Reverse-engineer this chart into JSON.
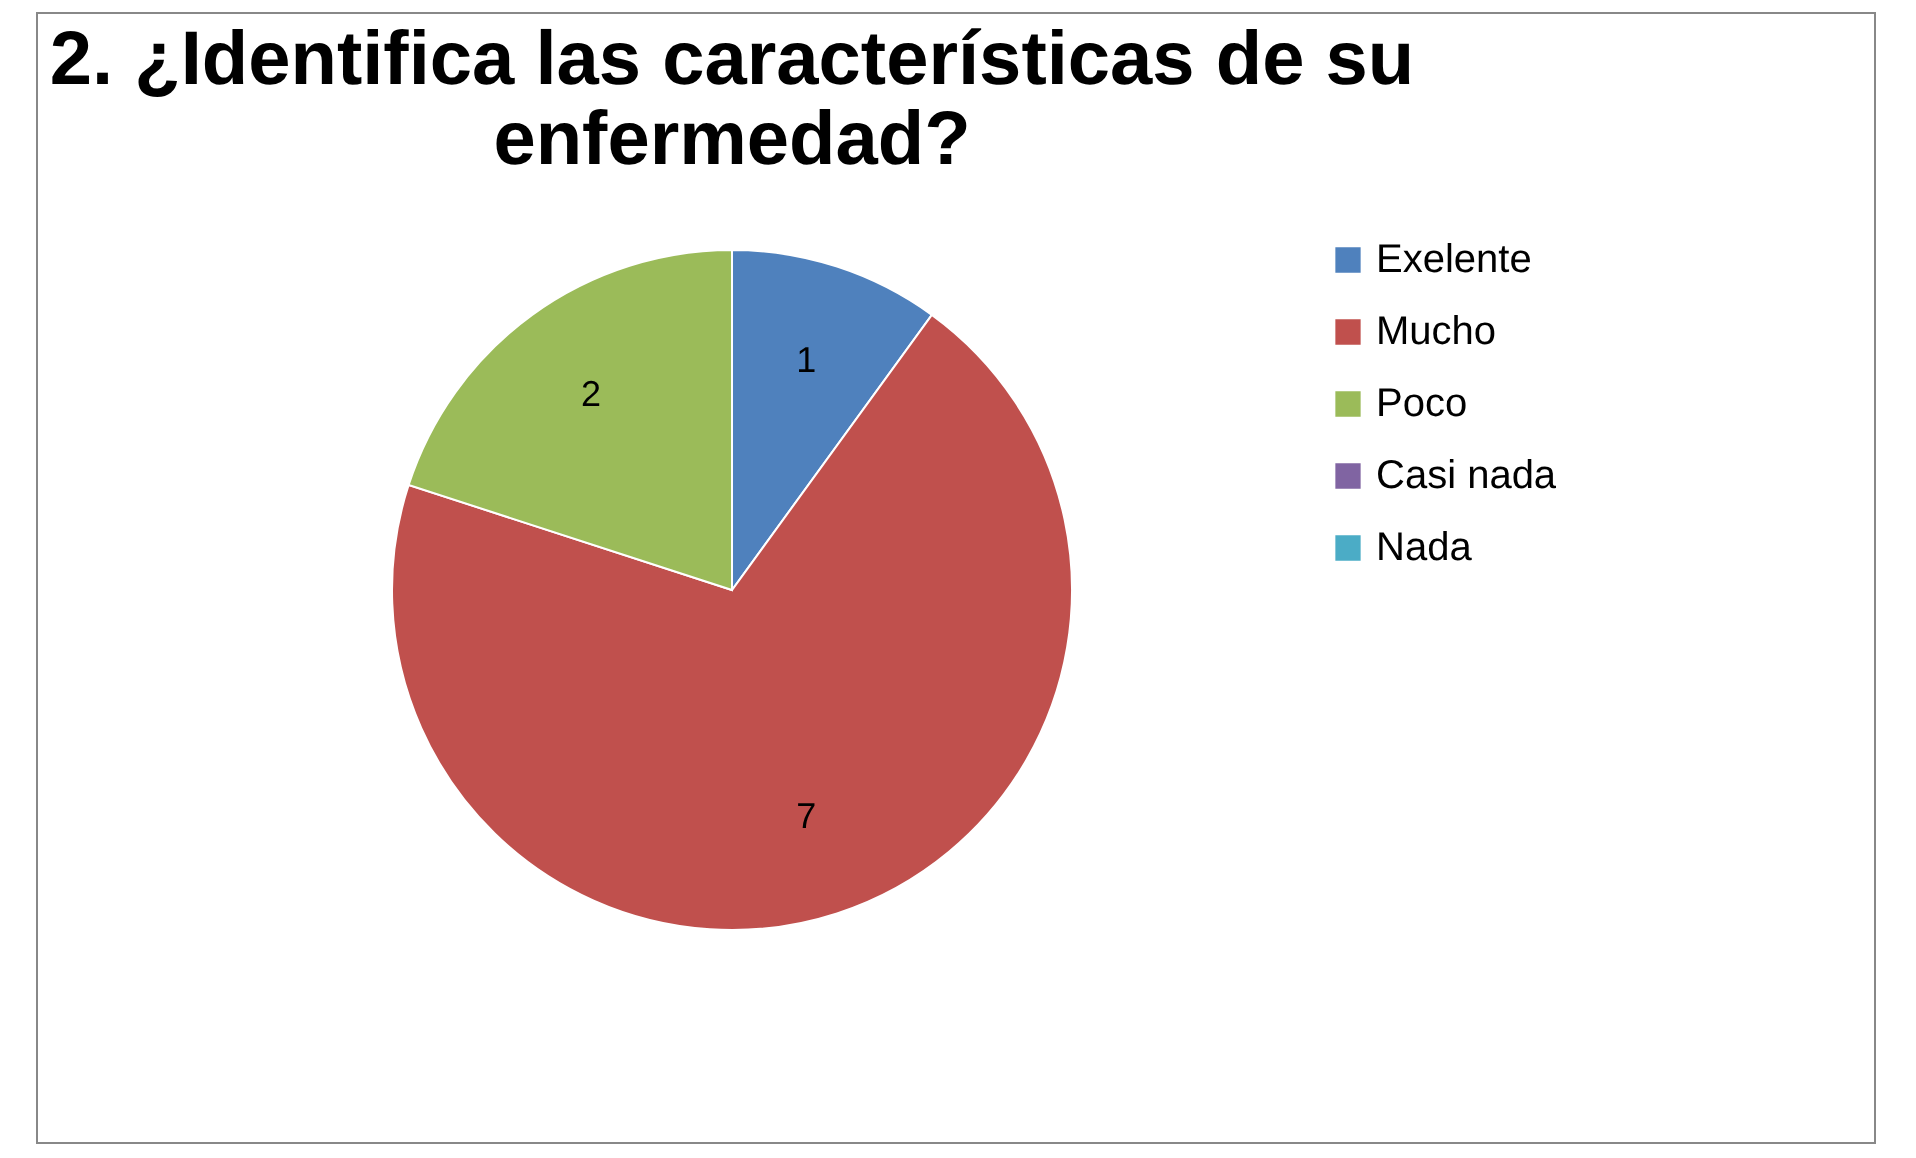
{
  "chart_data": {
    "type": "pie",
    "title": "2. ¿Identifica las características de su enfermedad?",
    "categories": [
      "Exelente",
      "Mucho",
      "Poco",
      "Casi nada",
      "Nada"
    ],
    "values": [
      1,
      7,
      2,
      0,
      0
    ],
    "colors": [
      "#4f81bd",
      "#c0504d",
      "#9bbb59",
      "#8064a2",
      "#4bacc6"
    ],
    "value_labels": [
      "1",
      "7",
      "2",
      null,
      null
    ],
    "legend": "right"
  }
}
